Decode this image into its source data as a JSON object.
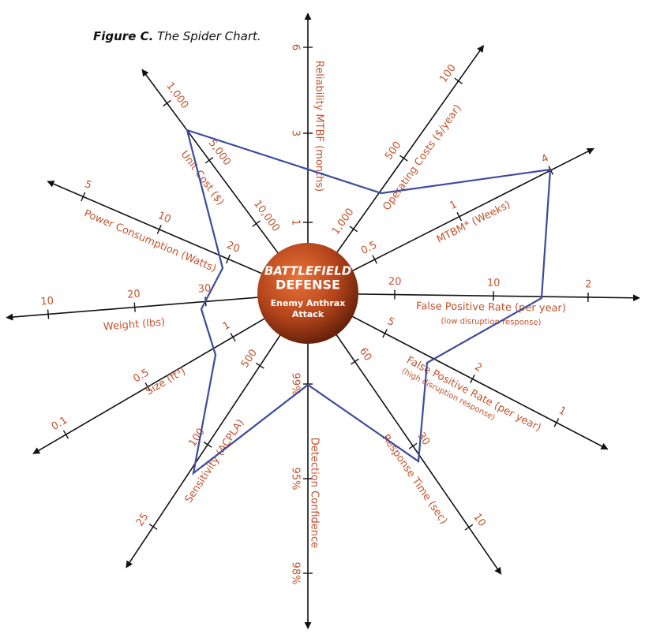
{
  "figure": {
    "label": "Figure C.",
    "caption": "The Spider Chart."
  },
  "center": {
    "line1": "BATTLEFIELD",
    "line2": "DEFENSE",
    "line3": "Enemy Anthrax",
    "line4": "Attack"
  },
  "axes": [
    {
      "name": "Reliability MTBF (months)",
      "ticks": [
        "1",
        "3",
        "6"
      ]
    },
    {
      "name": "Operating Costs ($/year)",
      "ticks": [
        "1,000",
        "500",
        "100"
      ]
    },
    {
      "name": "MTBM* (Weeks)",
      "ticks": [
        "0.5",
        "1",
        "4"
      ]
    },
    {
      "name": "False Positive Rate (per year)",
      "sublabel": "(low disruption response)",
      "ticks": [
        "20",
        "10",
        "2"
      ]
    },
    {
      "name": "False Positive Rate (per year)",
      "sublabel": "(high disruption response)",
      "ticks": [
        "5",
        "2",
        "1"
      ]
    },
    {
      "name": "Response Time (sec)",
      "ticks": [
        "60",
        "30",
        "10"
      ]
    },
    {
      "name": "Detection Confidence",
      "ticks": [
        "99%",
        "95%",
        "98%"
      ]
    },
    {
      "name": "Sensitivity (ACPLA)",
      "ticks": [
        "500",
        "100",
        "25"
      ]
    },
    {
      "name": "Size (ft³)",
      "ticks": [
        "1",
        "0.5",
        "0.1"
      ]
    },
    {
      "name": "Weight (lbs)",
      "ticks": [
        "30",
        "20",
        "10"
      ]
    },
    {
      "name": "Power Consumption (Watts)",
      "ticks": [
        "20",
        "10",
        "5"
      ]
    },
    {
      "name": "Unit Cost ($)",
      "ticks": [
        "10,000",
        "5,000",
        "1,000"
      ]
    }
  ]
}
